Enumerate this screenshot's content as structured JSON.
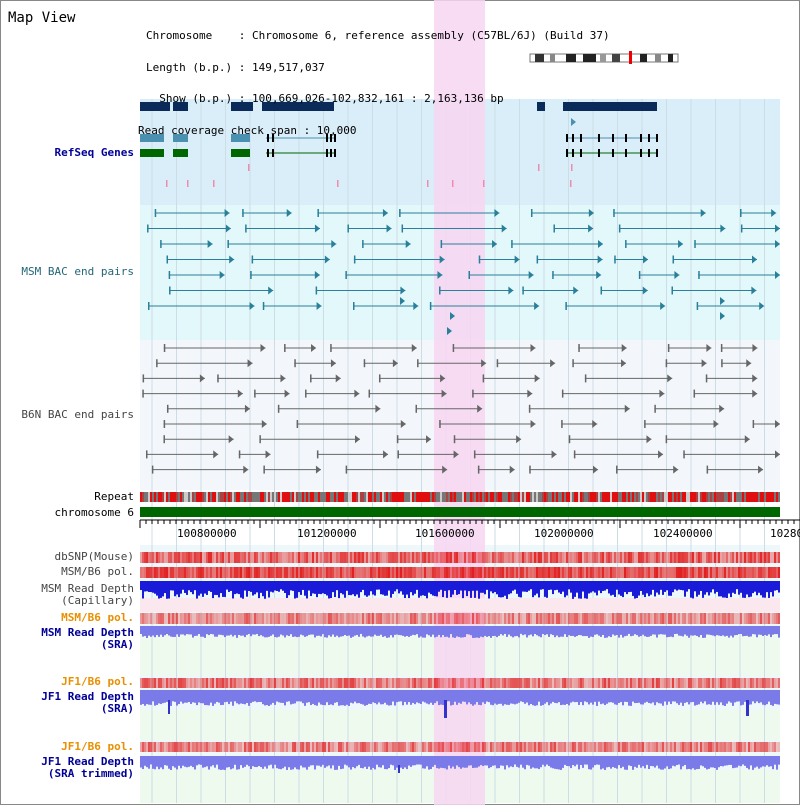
{
  "view": {
    "title": "Map View",
    "info": {
      "chromosome": "Chromosome    : Chromosome 6, reference assembly (C57BL/6J) (Build 37)",
      "length": "Length (b.p.) : 149,517,037",
      "show": "  Show (b.p.) : 100,669,026-102,832,161 : 2,163,136 bp",
      "coverage": "Read coverage check span : 10,000"
    }
  },
  "tracks": {
    "refseq": "RefSeq Genes",
    "msm_bac": "MSM BAC end pairs",
    "b6n_bac": "B6N BAC end pairs",
    "repeat": "Repeat",
    "chromosome": "chromosome 6",
    "dbsnp": "dbSNP(Mouse)",
    "msm_pol": "MSM/B6 pol.",
    "msm_depth_cap_1": "MSM Read Depth",
    "msm_depth_cap_2": "(Capillary)",
    "msm_pol2": "MSM/B6 pol.",
    "msm_depth_sra_1": "MSM Read Depth",
    "msm_depth_sra_2": "(SRA)",
    "jf1_pol": "JF1/B6 pol.",
    "jf1_depth_sra_1": "JF1 Read Depth",
    "jf1_depth_sra_2": "(SRA)",
    "jf1_pol2": "JF1/B6 pol.",
    "jf1_depth_trim_1": "JF1 Read Depth",
    "jf1_depth_trim_2": "(SRA trimmed)"
  },
  "axis": {
    "ticks": [
      "100800000",
      "101200000",
      "101600000",
      "102000000",
      "102400000",
      "10280"
    ]
  },
  "colors": {
    "highlight": "#f7d6f1",
    "refseq_bg": "#d9eef9",
    "bac_bg": "#e3f8fb",
    "gene_dark": "#0a2a5a",
    "gene_mid": "#4a90b0",
    "gene_green": "#006600",
    "msm_bac": "#2a7f9a",
    "chromosome": "#006600",
    "snp_red": "#e83030",
    "depth_blue": "#1a1ad9",
    "depth_light": "#7a7ae8"
  }
}
